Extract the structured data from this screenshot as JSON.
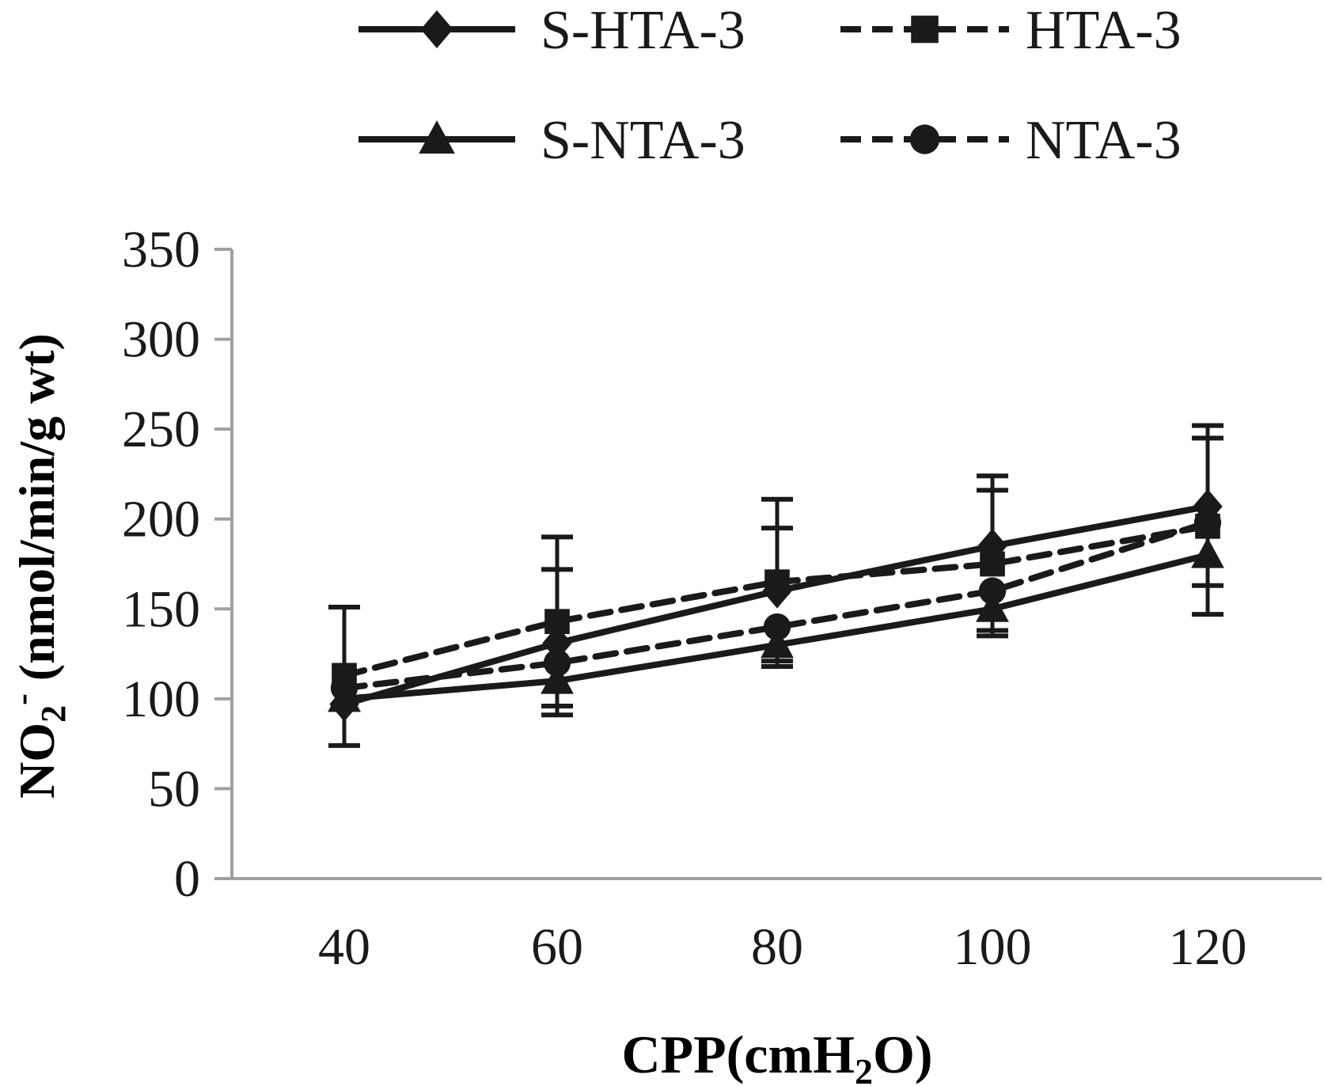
{
  "chart_data": {
    "type": "line",
    "title": "",
    "xlabel": "CPP(cmH",
    "xlabel_sub": "2",
    "xlabel_end": "O)",
    "ylabel": "NO",
    "ylabel_sub": "2",
    "ylabel_sup": "-",
    "ylabel_end": " (nmol/min/g wt)",
    "x": [
      40,
      60,
      80,
      100,
      120
    ],
    "x_tick_labels": [
      "40",
      "60",
      "80",
      "100",
      "120"
    ],
    "ylim": [
      0,
      350
    ],
    "y_ticks": [
      0,
      50,
      100,
      150,
      200,
      250,
      300,
      350
    ],
    "y_tick_labels": [
      "0",
      "50",
      "100",
      "150",
      "200",
      "250",
      "300",
      "350"
    ],
    "grid": false,
    "legend_position": "top",
    "series": [
      {
        "name": "S-HTA-3",
        "marker": "diamond",
        "line": "solid",
        "values": [
          97,
          131,
          160,
          185,
          207
        ],
        "err_upper": [
          null,
          190,
          211,
          224,
          252
        ],
        "err_lower": [
          74,
          null,
          null,
          null,
          null
        ]
      },
      {
        "name": "HTA-3",
        "marker": "square",
        "line": "dashed",
        "values": [
          113,
          143,
          165,
          175,
          196
        ],
        "err_upper": [
          151,
          172,
          195,
          216,
          245
        ],
        "err_lower": [
          null,
          null,
          null,
          null,
          null
        ]
      },
      {
        "name": "S-NTA-3",
        "marker": "triangle",
        "line": "solid",
        "values": [
          100,
          110,
          130,
          150,
          180
        ],
        "err_upper": [
          null,
          null,
          null,
          null,
          null
        ],
        "err_lower": [
          null,
          91,
          118,
          135,
          147
        ]
      },
      {
        "name": "NTA-3",
        "marker": "circle",
        "line": "dashed",
        "values": [
          106,
          120,
          140,
          160,
          198
        ],
        "err_upper": [
          null,
          null,
          null,
          null,
          null
        ],
        "err_lower": [
          null,
          96,
          121,
          138,
          163
        ]
      }
    ],
    "colors": {
      "series": "#1a1a1a",
      "axis": "#a0a0a0"
    }
  }
}
